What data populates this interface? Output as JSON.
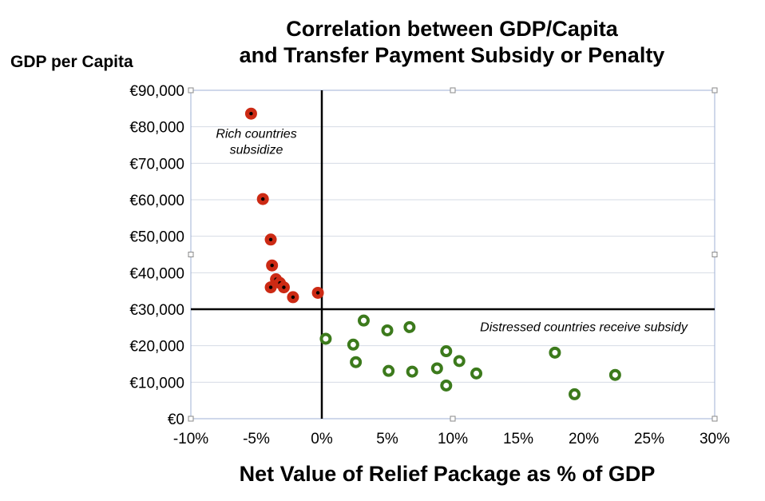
{
  "chart_data": {
    "type": "scatter",
    "title_lines": [
      "Correlation between GDP/Capita",
      "and Transfer Payment Subsidy or Penalty"
    ],
    "ylabel": "GDP per Capita",
    "xlabel": "Net Value of Relief Package as % of GDP",
    "xlim": [
      -10,
      30
    ],
    "ylim": [
      0,
      90000
    ],
    "x_ticks": [
      -10,
      -5,
      0,
      5,
      10,
      15,
      20,
      25,
      30
    ],
    "x_tick_labels": [
      "-10%",
      "-5%",
      "0%",
      "5%",
      "10%",
      "15%",
      "20%",
      "25%",
      "30%"
    ],
    "y_ticks": [
      0,
      10000,
      20000,
      30000,
      40000,
      50000,
      60000,
      70000,
      80000,
      90000
    ],
    "y_tick_labels": [
      "€0",
      "€10,000",
      "€20,000",
      "€30,000",
      "€40,000",
      "€50,000",
      "€60,000",
      "€70,000",
      "€80,000",
      "€90,000"
    ],
    "reference_lines": {
      "x": 0,
      "y": 30000
    },
    "annotations": [
      {
        "lines": [
          "Rich countries",
          "subsidize"
        ],
        "x": -5,
        "y": 77000
      },
      {
        "lines": [
          "Distressed countries receive subsidy"
        ],
        "x": 20,
        "y": 24000
      }
    ],
    "series": [
      {
        "name": "Rich countries",
        "color": "#cc2a14",
        "marker": "filled-dot",
        "points": [
          [
            -5.4,
            83600
          ],
          [
            -4.5,
            60200
          ],
          [
            -3.9,
            49100
          ],
          [
            -3.8,
            42000
          ],
          [
            -3.5,
            38200
          ],
          [
            -3.2,
            37200
          ],
          [
            -2.9,
            36000
          ],
          [
            -3.9,
            36000
          ],
          [
            -2.2,
            33300
          ],
          [
            -0.3,
            34500
          ]
        ]
      },
      {
        "name": "Distressed countries",
        "color": "#3c7a1c",
        "marker": "ring",
        "points": [
          [
            0.3,
            21900
          ],
          [
            2.4,
            20300
          ],
          [
            2.6,
            15500
          ],
          [
            3.2,
            26900
          ],
          [
            5.0,
            24200
          ],
          [
            5.1,
            13100
          ],
          [
            6.7,
            25100
          ],
          [
            6.9,
            12900
          ],
          [
            8.8,
            13800
          ],
          [
            9.5,
            18500
          ],
          [
            9.5,
            9100
          ],
          [
            10.5,
            15800
          ],
          [
            11.8,
            12400
          ],
          [
            17.8,
            18100
          ],
          [
            19.3,
            6700
          ],
          [
            22.4,
            12000
          ]
        ]
      }
    ]
  }
}
